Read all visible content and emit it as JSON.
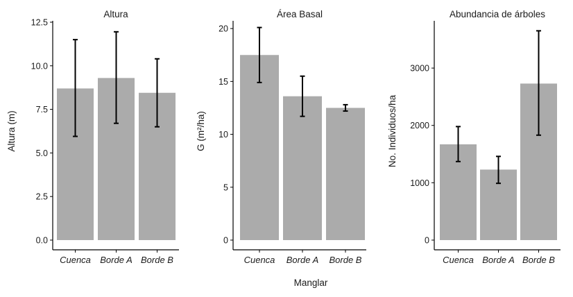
{
  "xlabel": "Manglar",
  "colors": {
    "bar": "#ababab",
    "error_bar": "#000000",
    "axis": "#000000"
  },
  "chart_data": [
    {
      "type": "bar",
      "title": "Altura",
      "ylabel": "Altura (m)",
      "ylim": [
        0,
        12.5
      ],
      "yticks": [
        0,
        2.5,
        5,
        7.5,
        10,
        12.5
      ],
      "ytick_labels": [
        "0.0",
        "2.5",
        "5.0",
        "7.5",
        "10.0",
        "12.5"
      ],
      "categories": [
        "Cuenca",
        "Borde A",
        "Borde B"
      ],
      "values": [
        8.7,
        9.3,
        8.45
      ],
      "error_low": [
        5.95,
        6.7,
        6.5
      ],
      "error_high": [
        11.5,
        11.95,
        10.4
      ]
    },
    {
      "type": "bar",
      "title": "Área Basal",
      "ylabel": "G (m²/ha)",
      "ylim": [
        0,
        20.6
      ],
      "yticks": [
        0,
        5,
        10,
        15,
        20
      ],
      "ytick_labels": [
        "0",
        "5",
        "10",
        "15",
        "20"
      ],
      "categories": [
        "Cuenca",
        "Borde A",
        "Borde B"
      ],
      "values": [
        17.5,
        13.6,
        12.5
      ],
      "error_low": [
        14.9,
        11.7,
        12.2
      ],
      "error_high": [
        20.1,
        15.5,
        12.8
      ]
    },
    {
      "type": "bar",
      "title": "Abundancia de árboles",
      "ylabel": "No. Individuos/ha",
      "ylim": [
        0,
        3800
      ],
      "yticks": [
        0,
        1000,
        2000,
        3000
      ],
      "ytick_labels": [
        "0",
        "1000",
        "2000",
        "3000"
      ],
      "categories": [
        "Cuenca",
        "Borde A",
        "Borde B"
      ],
      "values": [
        1670,
        1230,
        2730
      ],
      "error_low": [
        1370,
        990,
        1830
      ],
      "error_high": [
        1980,
        1460,
        3650
      ]
    }
  ]
}
